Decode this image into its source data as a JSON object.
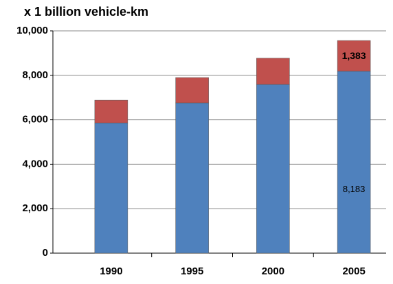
{
  "chart_data": {
    "type": "stacked_bar",
    "title": "x 1 billion vehicle-km",
    "categories": [
      "1990",
      "1995",
      "2000",
      "2005"
    ],
    "series": [
      {
        "color": "#4f81bd",
        "values": [
          5860,
          6760,
          7590,
          8183
        ],
        "value_labels": [
          null,
          null,
          null,
          "8,183"
        ]
      },
      {
        "color": "#c0504d",
        "values": [
          1020,
          1140,
          1180,
          1383
        ],
        "value_labels": [
          null,
          null,
          null,
          "1,383"
        ]
      }
    ],
    "ylim": [
      0,
      10000
    ],
    "yticks": [
      0,
      {
        "value": 2000,
        "label": "2,000"
      },
      {
        "value": 4000,
        "label": "4,000"
      },
      {
        "value": 6000,
        "label": "6,000"
      },
      {
        "value": 8000,
        "label": "8,000"
      },
      {
        "value": 10000,
        "label": "10,000"
      }
    ],
    "grid": true
  }
}
